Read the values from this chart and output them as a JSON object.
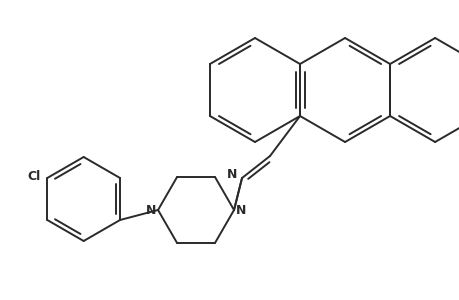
{
  "bg_color": "#ffffff",
  "line_color": "#2a2a2a",
  "line_width": 1.4,
  "fig_width": 4.6,
  "fig_height": 3.0,
  "dpi": 100,
  "xlim": [
    0,
    460
  ],
  "ylim": [
    0,
    300
  ],
  "N_label": "N",
  "Cl_label": "Cl"
}
